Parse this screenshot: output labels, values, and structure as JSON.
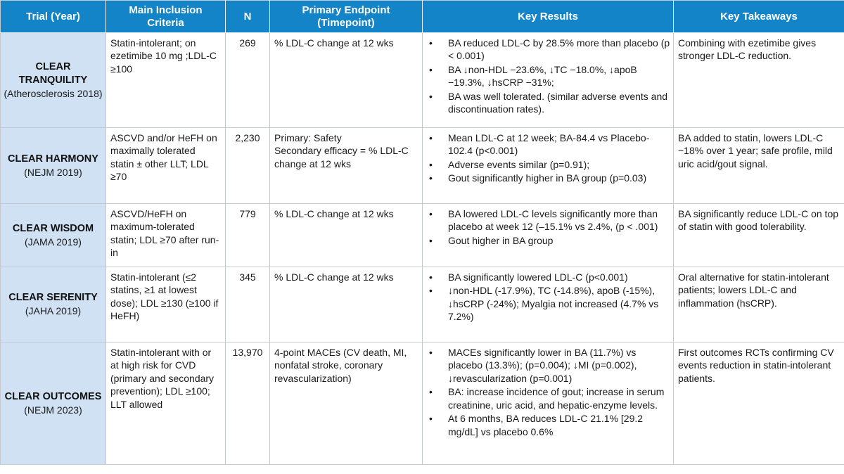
{
  "colors": {
    "header_bg": "#1284c7",
    "header_text": "#ffffff",
    "trial_column_bg": "#cfe1f3",
    "border": "#c3c9ce"
  },
  "table": {
    "headers": {
      "trial": "Trial (Year)",
      "inclusion": "Main Inclusion Criteria",
      "n": "N",
      "endpoint": "Primary Endpoint (Timepoint)",
      "results": "Key Results",
      "takeaways": "Key Takeaways"
    },
    "rows": [
      {
        "trial_name": "CLEAR TRANQUILITY",
        "trial_citation": "(Atherosclerosis 2018)",
        "inclusion": "Statin-intolerant; on ezetimibe 10 mg ;LDL-C ≥100",
        "n": "269",
        "endpoint": "% LDL-C change at 12 wks",
        "results": [
          "BA reduced LDL-C by 28.5% more than placebo (p < 0.001)",
          "BA ↓non-HDL −23.6%, ↓TC −18.0%, ↓apoB −19.3%, ↓hsCRP −31%;",
          "BA was well tolerated. (similar adverse events and discontinuation rates)."
        ],
        "takeaway": "Combining with ezetimibe gives stronger LDL-C reduction."
      },
      {
        "trial_name": "CLEAR HARMONY",
        "trial_citation": "(NEJM 2019)",
        "inclusion": "ASCVD and/or HeFH on maximally tolerated statin ± other LLT; LDL ≥70",
        "n": "2,230",
        "endpoint": "Primary: Safety\nSecondary efficacy = % LDL-C change at 12 wks",
        "results": [
          "Mean LDL-C at 12 week; BA-84.4 vs Placebo-102.4 (p<0.001)",
          "Adverse events similar (p=0.91);",
          "Gout significantly higher in BA group (p=0.03)"
        ],
        "takeaway": "BA added to statin, lowers LDL-C ~18% over 1 year; safe profile, mild uric acid/gout signal."
      },
      {
        "trial_name": "CLEAR WISDOM",
        "trial_citation": "(JAMA 2019)",
        "inclusion": "ASCVD/HeFH on maximum-tolerated statin; LDL ≥70 after run-in",
        "n": "779",
        "endpoint": "% LDL-C change at 12 wks",
        "results": [
          "BA lowered LDL-C levels significantly more than placebo at week 12 (–15.1% vs 2.4%, (p < .001)",
          "Gout higher in BA group"
        ],
        "takeaway": "BA significantly reduce LDL-C on top of statin with good tolerability."
      },
      {
        "trial_name": "CLEAR SERENITY",
        "trial_citation": "(JAHA 2019)",
        "inclusion": "Statin-intolerant (≤2 statins, ≥1 at lowest dose); LDL ≥130 (≥100 if HeFH)",
        "n": "345",
        "endpoint": "% LDL-C change at 12 wks",
        "results": [
          "BA significantly lowered LDL-C (p<0.001)",
          "↓non-HDL (-17.9%), TC (-14.8%), apoB (-15%), ↓hsCRP (-24%); Myalgia not increased (4.7% vs 7.2%)"
        ],
        "takeaway": "Oral alternative for statin-intolerant patients; lowers LDL-C and inflammation (hsCRP)."
      },
      {
        "trial_name": "CLEAR OUTCOMES",
        "trial_citation": "(NEJM 2023)",
        "inclusion": "Statin-intolerant with or at high risk for CVD (primary and secondary prevention); LDL ≥100; LLT allowed",
        "n": "13,970",
        "endpoint": "4-point MACEs (CV death, MI, nonfatal stroke, coronary revascularization)",
        "results": [
          "MACEs significantly lower in BA (11.7%) vs placebo (13.3%); (p=0.004); ↓MI (p=0.002), ↓revascularization (p=0.001)",
          "BA: increase incidence of gout; increase in serum creatinine, uric acid, and hepatic-enzyme levels.",
          "At 6 months, BA reduces LDL-C 21.1% [29.2 mg/dL] vs placebo 0.6%"
        ],
        "takeaway": "First outcomes RCTs confirming CV events reduction in statin-intolerant patients."
      }
    ]
  }
}
